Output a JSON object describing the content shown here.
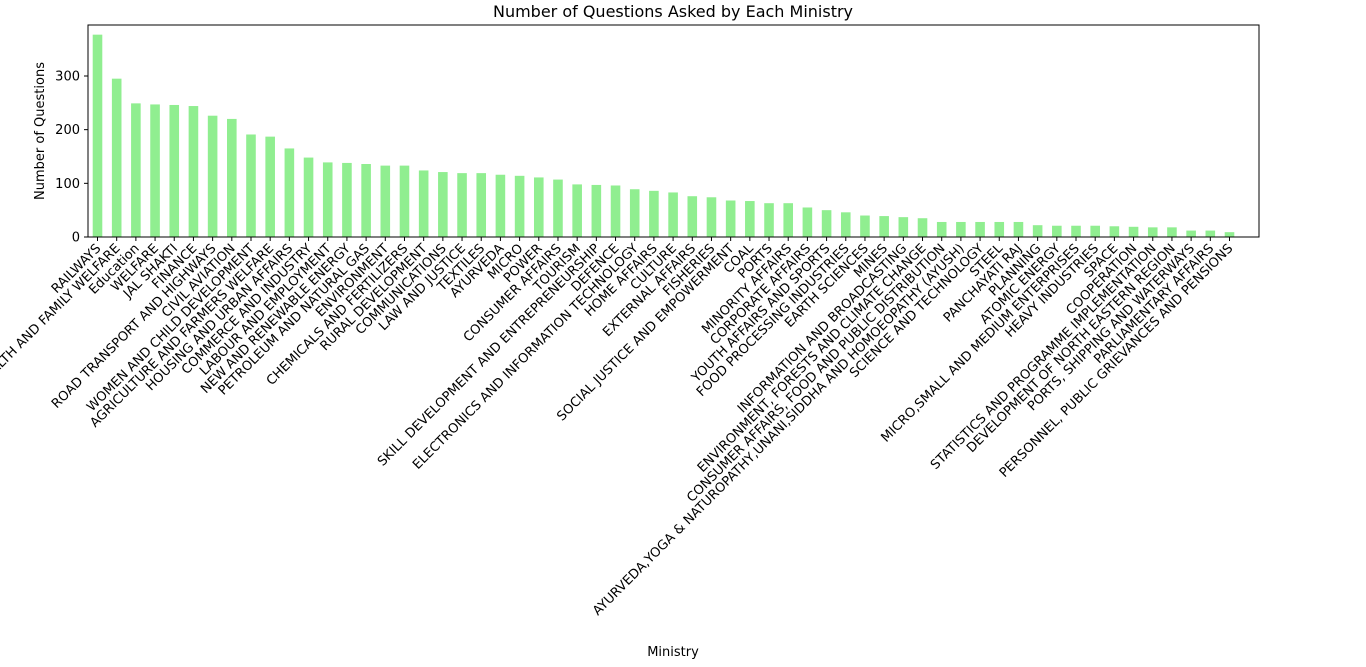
{
  "chart_data": {
    "type": "bar",
    "title": "Number of Questions Asked by Each Ministry",
    "xlabel": "Ministry",
    "ylabel": "Number of Questions",
    "ylim": [
      0,
      395
    ],
    "yticks": [
      0,
      100,
      200,
      300
    ],
    "grid": false,
    "bar_color": "#90ee90",
    "categories": [
      "RAILWAYS",
      "HEALTH AND FAMILY WELFARE",
      "Education",
      "WELFARE",
      "JAL SHAKTI",
      "FINANCE",
      "ROAD TRANSPORT AND HIGHWAYS",
      "CIVIL AVIATION",
      "WOMEN AND CHILD DEVELOPMENT",
      "AGRICULTURE AND FARMERS WELFARE",
      "HOUSING AND URBAN AFFAIRS",
      "COMMERCE AND INDUSTRY",
      "LABOUR AND EMPLOYMENT",
      "NEW AND RENEWABLE ENERGY",
      "PETROLEUM AND NATURAL GAS",
      "ENVIRONMENT",
      "CHEMICALS AND FERTILIZERS",
      "RURAL DEVELOPMENT",
      "COMMUNICATIONS",
      "LAW AND JUSTICE",
      "TEXTILES",
      "AYURVEDA",
      "MICRO",
      "POWER",
      "CONSUMER AFFAIRS",
      "TOURISM",
      "SKILL DEVELOPMENT AND ENTREPRENEURSHIP",
      "DEFENCE",
      "ELECTRONICS AND INFORMATION TECHNOLOGY",
      "HOME AFFAIRS",
      "CULTURE",
      "EXTERNAL AFFAIRS",
      "FISHERIES",
      "SOCIAL JUSTICE AND EMPOWERMENT",
      "COAL",
      "PORTS",
      "MINORITY AFFAIRS",
      "CORPORATE AFFAIRS",
      "YOUTH AFFAIRS AND SPORTS",
      "FOOD PROCESSING INDUSTRIES",
      "EARTH SCIENCES",
      "MINES",
      "INFORMATION AND BROADCASTING",
      "ENVIRONMENT, FORESTS AND CLIMATE CHANGE",
      "CONSUMER AFFAIRS, FOOD AND PUBLIC DISTRIBUTION",
      "AYURVEDA,YOGA & NATUROPATHY,UNANI,SIDDHA AND HOMOEOPATHY (AYUSH)",
      "SCIENCE AND TECHNOLOGY",
      "STEEL",
      "PANCHAYATI RAJ",
      "PLANNING",
      "ATOMIC ENERGY",
      "MICRO,SMALL AND MEDIUM ENTERPRISES",
      "HEAVY INDUSTRIES",
      "SPACE",
      "COOPERATION",
      "STATISTICS AND PROGRAMME IMPLEMENTATION",
      "DEVELOPMENT OF NORTH EASTERN REGION",
      "PORTS, SHIPPING AND WATERWAYS",
      "PARLIAMENTARY AFFAIRS",
      "PERSONNEL, PUBLIC GRIEVANCES AND PENSIONS"
    ],
    "values": [
      377,
      295,
      249,
      247,
      246,
      244,
      226,
      220,
      191,
      187,
      165,
      148,
      139,
      138,
      136,
      133,
      133,
      124,
      121,
      119,
      119,
      116,
      114,
      111,
      107,
      98,
      97,
      96,
      89,
      86,
      83,
      76,
      74,
      68,
      67,
      63,
      63,
      55,
      50,
      46,
      40,
      39,
      37,
      35,
      28,
      28,
      28,
      28,
      28,
      22,
      21,
      21,
      21,
      20,
      19,
      18,
      18,
      12,
      12,
      9
    ]
  }
}
